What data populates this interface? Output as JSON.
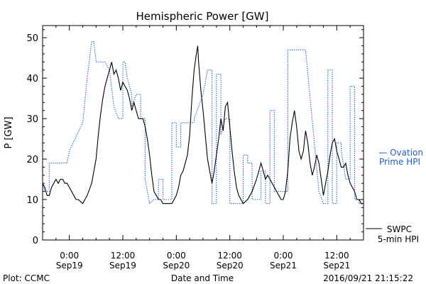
{
  "chart_data": {
    "type": "line",
    "title": "Hemispheric Power [GW]",
    "ylabel": "P [GW]",
    "xlabel": "Date and Time",
    "ylim": [
      0,
      53
    ],
    "yticks": [
      0,
      10,
      20,
      30,
      40,
      50
    ],
    "xlim_hours": [
      -6,
      66
    ],
    "xticks": [
      {
        "h": 0,
        "time": "0:00",
        "date": "Sep19"
      },
      {
        "h": 12,
        "time": "12:00",
        "date": "Sep19"
      },
      {
        "h": 24,
        "time": "0:00",
        "date": "Sep20"
      },
      {
        "h": 36,
        "time": "12:00",
        "date": "Sep20"
      },
      {
        "h": 48,
        "time": "0:00",
        "date": "Sep21"
      },
      {
        "h": 60,
        "time": "12:00",
        "date": "Sep21"
      }
    ],
    "series": [
      {
        "name_lines": [
          "— Ovation",
          "Prime HPI"
        ],
        "style": "dotted",
        "color": "#1f5fc8",
        "points": [
          [
            -6,
            14
          ],
          [
            -5.5,
            12
          ],
          [
            -4.5,
            12
          ],
          [
            -4.5,
            19
          ],
          [
            -1,
            19
          ],
          [
            -0.5,
            19
          ],
          [
            0,
            22
          ],
          [
            3,
            29
          ],
          [
            4,
            40
          ],
          [
            5,
            49
          ],
          [
            5.5,
            49
          ],
          [
            6,
            44
          ],
          [
            8,
            44
          ],
          [
            8.5,
            43
          ],
          [
            9,
            42
          ],
          [
            10,
            33
          ],
          [
            11,
            30
          ],
          [
            12,
            30
          ],
          [
            12,
            44
          ],
          [
            12.5,
            44
          ],
          [
            13,
            40
          ],
          [
            14,
            36
          ],
          [
            14,
            33
          ],
          [
            15,
            36
          ],
          [
            16,
            36
          ],
          [
            16,
            30
          ],
          [
            17,
            30
          ],
          [
            17,
            15
          ],
          [
            18,
            9
          ],
          [
            19,
            10
          ],
          [
            20,
            10
          ],
          [
            20,
            15
          ],
          [
            21,
            15
          ],
          [
            21,
            10
          ],
          [
            22,
            10
          ],
          [
            23,
            10
          ],
          [
            23,
            29
          ],
          [
            24,
            29
          ],
          [
            24,
            23
          ],
          [
            25,
            23
          ],
          [
            25,
            29
          ],
          [
            27,
            29
          ],
          [
            28,
            29
          ],
          [
            28,
            30
          ],
          [
            30,
            36
          ],
          [
            31,
            42
          ],
          [
            32,
            42
          ],
          [
            32,
            9
          ],
          [
            33,
            9
          ],
          [
            33,
            41
          ],
          [
            34,
            41
          ],
          [
            34,
            26
          ],
          [
            35,
            30
          ],
          [
            36,
            30
          ],
          [
            36,
            9
          ],
          [
            37,
            9
          ],
          [
            38,
            9
          ],
          [
            39,
            9
          ],
          [
            39,
            21
          ],
          [
            40,
            21
          ],
          [
            40,
            19
          ],
          [
            41,
            19
          ],
          [
            41,
            10
          ],
          [
            43,
            10
          ],
          [
            43,
            17
          ],
          [
            44,
            17
          ],
          [
            44,
            9
          ],
          [
            45,
            9
          ],
          [
            45,
            32
          ],
          [
            46,
            32
          ],
          [
            46,
            12
          ],
          [
            47,
            12
          ],
          [
            47,
            12
          ],
          [
            49,
            12
          ],
          [
            49,
            47
          ],
          [
            53,
            47
          ],
          [
            56,
            12
          ],
          [
            57,
            9
          ],
          [
            58,
            9
          ],
          [
            58,
            42
          ],
          [
            59,
            42
          ],
          [
            59,
            9
          ],
          [
            60,
            9
          ],
          [
            60,
            24
          ],
          [
            61,
            24
          ],
          [
            61,
            22
          ],
          [
            62,
            15
          ],
          [
            63,
            15
          ],
          [
            63,
            38
          ],
          [
            64,
            38
          ],
          [
            64,
            10
          ],
          [
            65,
            10
          ],
          [
            65,
            9
          ],
          [
            66,
            9
          ]
        ]
      },
      {
        "name_lines": [
          "SWPC",
          "5-min HPI"
        ],
        "style": "solid",
        "color": "#000000",
        "points": [
          [
            -6,
            14
          ],
          [
            -5.5,
            13
          ],
          [
            -5,
            11
          ],
          [
            -4.5,
            11
          ],
          [
            -4,
            13
          ],
          [
            -3.5,
            14
          ],
          [
            -3,
            15
          ],
          [
            -2.5,
            14
          ],
          [
            -2,
            15
          ],
          [
            -1.5,
            15
          ],
          [
            -1,
            14
          ],
          [
            -0.5,
            14
          ],
          [
            0,
            13
          ],
          [
            0.5,
            12
          ],
          [
            1,
            11
          ],
          [
            1.5,
            10
          ],
          [
            2,
            10
          ],
          [
            3,
            9
          ],
          [
            3.5,
            10
          ],
          [
            4,
            11
          ],
          [
            5,
            14
          ],
          [
            5.5,
            17
          ],
          [
            6,
            20
          ],
          [
            6.5,
            26
          ],
          [
            7,
            31
          ],
          [
            7.5,
            35
          ],
          [
            8,
            38
          ],
          [
            8.5,
            40
          ],
          [
            9,
            42
          ],
          [
            9.5,
            44
          ],
          [
            10,
            41
          ],
          [
            10.5,
            42
          ],
          [
            11,
            40
          ],
          [
            11.5,
            37
          ],
          [
            12,
            39
          ],
          [
            12.5,
            38
          ],
          [
            13,
            37
          ],
          [
            13.5,
            35
          ],
          [
            14,
            32
          ],
          [
            14.5,
            34
          ],
          [
            15,
            32
          ],
          [
            15.5,
            30
          ],
          [
            16,
            30
          ],
          [
            16.5,
            30
          ],
          [
            17,
            28
          ],
          [
            17.5,
            25
          ],
          [
            18,
            21
          ],
          [
            18.5,
            16
          ],
          [
            19,
            12
          ],
          [
            19.5,
            11
          ],
          [
            20,
            10
          ],
          [
            20.5,
            10
          ],
          [
            21,
            9
          ],
          [
            22,
            9
          ],
          [
            23,
            9
          ],
          [
            24,
            11
          ],
          [
            24.5,
            13
          ],
          [
            25,
            16
          ],
          [
            25.5,
            17
          ],
          [
            26,
            19
          ],
          [
            26.5,
            21
          ],
          [
            27,
            26
          ],
          [
            27.5,
            35
          ],
          [
            28,
            42
          ],
          [
            28.5,
            46
          ],
          [
            28.8,
            48
          ],
          [
            29,
            44
          ],
          [
            29.5,
            37
          ],
          [
            30,
            32
          ],
          [
            30.5,
            26
          ],
          [
            31,
            20
          ],
          [
            31.5,
            17
          ],
          [
            32,
            14
          ],
          [
            32.5,
            17
          ],
          [
            33,
            21
          ],
          [
            33.5,
            25
          ],
          [
            34,
            30
          ],
          [
            34.5,
            27
          ],
          [
            35,
            33
          ],
          [
            35.5,
            34
          ],
          [
            36,
            28
          ],
          [
            36.5,
            22
          ],
          [
            37,
            17
          ],
          [
            37.5,
            13
          ],
          [
            38,
            11
          ],
          [
            38.5,
            10
          ],
          [
            39,
            9
          ],
          [
            40,
            10
          ],
          [
            41,
            12
          ],
          [
            42,
            15
          ],
          [
            42.5,
            17
          ],
          [
            43,
            19
          ],
          [
            43.5,
            17
          ],
          [
            44,
            15
          ],
          [
            44.5,
            16
          ],
          [
            45,
            15
          ],
          [
            45.5,
            14
          ],
          [
            46,
            13
          ],
          [
            46.5,
            12
          ],
          [
            47,
            11
          ],
          [
            47.5,
            10
          ],
          [
            48,
            10
          ],
          [
            48.5,
            12
          ],
          [
            49,
            17
          ],
          [
            49.5,
            25
          ],
          [
            50,
            29
          ],
          [
            50.5,
            32
          ],
          [
            51,
            28
          ],
          [
            51.5,
            22
          ],
          [
            52,
            20
          ],
          [
            52.5,
            22
          ],
          [
            53,
            27
          ],
          [
            53.5,
            24
          ],
          [
            54,
            19
          ],
          [
            54.5,
            16
          ],
          [
            55,
            18
          ],
          [
            55.5,
            21
          ],
          [
            56,
            19
          ],
          [
            56.5,
            15
          ],
          [
            57,
            11
          ],
          [
            57.5,
            14
          ],
          [
            58,
            17
          ],
          [
            58.5,
            21
          ],
          [
            59,
            24
          ],
          [
            59.5,
            25
          ],
          [
            60,
            22
          ],
          [
            60.5,
            20
          ],
          [
            61,
            18
          ],
          [
            61.5,
            18
          ],
          [
            62,
            19
          ],
          [
            62.5,
            16
          ],
          [
            63,
            14
          ],
          [
            63.5,
            13
          ],
          [
            64,
            12
          ],
          [
            64.5,
            10
          ],
          [
            65,
            10
          ],
          [
            65.5,
            9
          ],
          [
            66,
            9
          ]
        ]
      }
    ]
  },
  "footer": {
    "plot_by": "Plot: CCMC",
    "timestamp": "2016/09/21 21:15:22"
  }
}
